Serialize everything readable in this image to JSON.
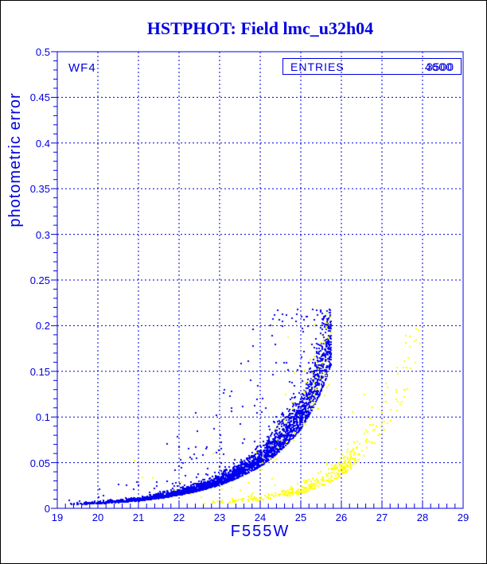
{
  "window": {
    "background": "#ffffff",
    "border_color": "#000000"
  },
  "chart_data": {
    "type": "scatter",
    "title": "HSTPHOT: Field lmc_u32h04",
    "panel_label": "WF4",
    "stats": {
      "label": "ENTRIES",
      "values": [
        "3500",
        "4600"
      ]
    },
    "xlabel": "F555W",
    "ylabel": "photometric error",
    "xlim": [
      19,
      29
    ],
    "ylim": [
      0,
      0.5
    ],
    "x_ticks": [
      19,
      20,
      21,
      22,
      23,
      24,
      25,
      26,
      27,
      28,
      29
    ],
    "x_tick_labels": [
      "19",
      "20",
      "21",
      "22",
      "23",
      "24",
      "25",
      "26",
      "27",
      "28",
      "29"
    ],
    "y_ticks": [
      0,
      0.05,
      0.1,
      0.15,
      0.2,
      0.25,
      0.3,
      0.35,
      0.4,
      0.45,
      0.5
    ],
    "y_tick_labels": [
      "0",
      "0.05",
      "0.1",
      "0.15",
      "0.2",
      "0.25",
      "0.3",
      "0.35",
      "0.4",
      "0.45",
      "0.5"
    ],
    "x_minor_step": 0.2,
    "y_minor_step": 0.01,
    "grid": "dashed-at-major-ticks",
    "legend": "none",
    "colors": {
      "axis": "#0000e0",
      "title": "#0000e0",
      "series_blue": "#0000ee",
      "series_yellow": "#ffff00"
    },
    "seed": 42,
    "marker_px": 2,
    "series": [
      {
        "name": "blue-error-curve",
        "color": "#0000ee",
        "count": 3000,
        "mag_range": [
          19.25,
          25.75
        ],
        "faint_bias": 0.55,
        "envelope_mag": [
          19.2,
          20,
          21,
          22,
          23,
          24,
          25,
          25.5,
          25.75
        ],
        "envelope_err": [
          0.0045,
          0.006,
          0.0095,
          0.017,
          0.03,
          0.054,
          0.102,
          0.15,
          0.185
        ],
        "spread_sigma": 0.12,
        "outlier_fraction": 0.055,
        "outlier_max_factor": 4.5,
        "err_cap": 0.218
      },
      {
        "name": "yellow-error-curve-main",
        "color": "#ffff00",
        "count": 310,
        "mag_range": [
          22.45,
          26.35
        ],
        "faint_bias": 0.5,
        "envelope_mag": [
          22.4,
          23,
          24,
          25,
          26,
          27,
          27.5,
          27.95
        ],
        "envelope_err": [
          0.005,
          0.0065,
          0.011,
          0.02,
          0.044,
          0.098,
          0.14,
          0.195
        ],
        "spread_sigma": 0.15,
        "outlier_fraction": 0.03,
        "outlier_max_factor": 2.2,
        "err_cap": 0.2
      },
      {
        "name": "yellow-error-curve-faint-tail",
        "color": "#ffff00",
        "count": 95,
        "mag_range": [
          26.05,
          27.95
        ],
        "faint_bias": 1.5,
        "envelope_mag": [
          22.4,
          23,
          24,
          25,
          26,
          27,
          27.5,
          27.95
        ],
        "envelope_err": [
          0.005,
          0.0065,
          0.011,
          0.02,
          0.044,
          0.098,
          0.14,
          0.195
        ],
        "spread_sigma": 0.13,
        "outlier_fraction": 0.02,
        "outlier_max_factor": 1.8,
        "err_cap": 0.21
      },
      {
        "name": "yellow-specks-on-blue-band",
        "color": "#ffff00",
        "count": 85,
        "mag_range": [
          23.7,
          25.75
        ],
        "faint_bias": 0.5,
        "envelope_mag": [
          19.2,
          20,
          21,
          22,
          23,
          24,
          25,
          25.5,
          25.75
        ],
        "envelope_err": [
          0.0045,
          0.006,
          0.0095,
          0.017,
          0.03,
          0.054,
          0.102,
          0.15,
          0.185
        ],
        "spread_sigma": 0.2,
        "outlier_fraction": 0.05,
        "outlier_max_factor": 2.0,
        "err_cap": 0.215
      },
      {
        "name": "yellow-isolated-outliers",
        "color": "#ffff00",
        "points": [
          [
            20.9,
            0.052
          ],
          [
            21.1,
            0.034
          ],
          [
            21.35,
            0.033
          ],
          [
            21.9,
            0.02
          ],
          [
            22.05,
            0.029
          ],
          [
            22.3,
            0.016
          ],
          [
            22.55,
            0.012
          ],
          [
            22.85,
            0.06
          ],
          [
            23.05,
            0.021
          ],
          [
            23.3,
            0.023
          ],
          [
            23.5,
            0.02
          ],
          [
            23.7,
            0.028
          ],
          [
            24.05,
            0.05
          ],
          [
            24.3,
            0.032
          ]
        ]
      }
    ]
  }
}
